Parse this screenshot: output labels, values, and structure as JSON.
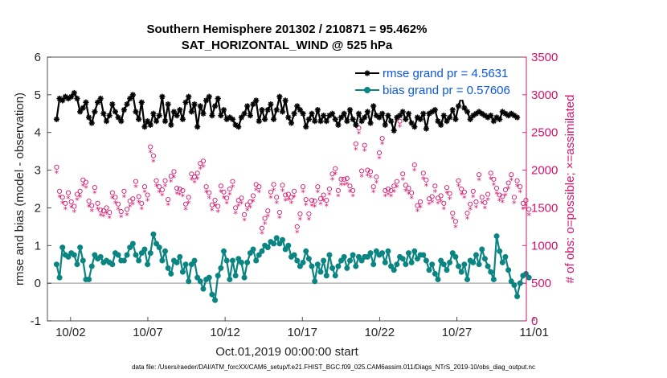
{
  "chart_data": {
    "type": "line",
    "title": "Southern Hemisphere 201302 / 210871 = 95.462%",
    "subtitle": "SAT_HORIZONTAL_WIND @ 525 hPa",
    "xlabel": "Oct.01,2019 00:00:00 start",
    "ylabel": "rmse and bias (model - observation)",
    "ylabel_right": "# of obs: o=possible; ×=assimilated",
    "footer": "data file: /Users/raeder/DAI/ATM_forcXX/CAM6_setup/f.e21.FHIST_BGC.f09_025.CAM6assim.011/Diags_NTrS_2019-10/obs_diag_output.nc",
    "xlim": [
      0.5,
      31.5
    ],
    "ylim": [
      -1,
      6
    ],
    "ylim_right": [
      0,
      3500
    ],
    "x_ticks": [
      2,
      7,
      12,
      17,
      22,
      27,
      32
    ],
    "x_tick_labels": [
      "10/02",
      "10/07",
      "10/12",
      "10/17",
      "10/22",
      "10/27",
      "11/01"
    ],
    "y_ticks": [
      "-1",
      "0",
      "1",
      "2",
      "3",
      "4",
      "5",
      "6"
    ],
    "y_right_ticks": [
      "0",
      "500",
      "1000",
      "1500",
      "2000",
      "2500",
      "3000",
      "3500"
    ],
    "grid": false,
    "legend_placement": "top-right",
    "colors": {
      "rmse": "#000000",
      "bias": "#0a8582",
      "obs": "#d6126b",
      "zero_line": "#b4b4b4",
      "legend_text": "#0b56e6"
    },
    "series": [
      {
        "name": "rmse grand pr = 4.5631",
        "axis": "left",
        "values": [
          4.35,
          4.9,
          4.85,
          4.95,
          4.9,
          4.95,
          5.05,
          4.9,
          4.55,
          4.65,
          4.8,
          4.4,
          4.25,
          4.55,
          4.8,
          4.9,
          4.5,
          4.3,
          4.45,
          4.75,
          4.55,
          4.4,
          4.3,
          4.6,
          4.75,
          4.9,
          5.0,
          4.55,
          4.35,
          4.8,
          4.15,
          4.3,
          4.2,
          4.5,
          4.3,
          4.45,
          4.95,
          4.3,
          4.75,
          4.2,
          4.55,
          4.45,
          4.6,
          4.35,
          4.8,
          4.95,
          4.55,
          4.75,
          4.15,
          4.7,
          4.5,
          4.85,
          4.95,
          4.45,
          4.7,
          4.9,
          4.45,
          4.6,
          4.35,
          4.4,
          4.35,
          4.2,
          4.15,
          4.4,
          4.5,
          4.7,
          4.45,
          4.75,
          4.85,
          4.3,
          4.6,
          4.35,
          4.6,
          4.75,
          4.35,
          4.6,
          4.95,
          4.55,
          4.85,
          4.4,
          4.25,
          4.5,
          4.7,
          4.6,
          4.5,
          4.15,
          4.35,
          4.5,
          4.3,
          4.6,
          4.3,
          4.45,
          4.3,
          4.45,
          4.5,
          4.35,
          4.2,
          4.4,
          4.5,
          4.3,
          4.6,
          4.35,
          4.2,
          4.5,
          4.3,
          4.4,
          4.55,
          4.25,
          4.7,
          4.45,
          4.4,
          4.5,
          4.2,
          4.45,
          4.3,
          4.05,
          4.4,
          4.45,
          4.55,
          4.35,
          4.5,
          4.25,
          4.15,
          4.4,
          4.35,
          4.5,
          4.1,
          4.5,
          4.55,
          4.6,
          4.3,
          4.2,
          4.45,
          4.3,
          4.4,
          4.6,
          4.35,
          4.7,
          4.95,
          4.65,
          4.55,
          4.35,
          4.45,
          4.5,
          4.55,
          4.5,
          4.45,
          4.4,
          4.45,
          4.3,
          4.4,
          4.35,
          4.55,
          4.5,
          4.45,
          4.5,
          4.45,
          4.4
        ]
      },
      {
        "name": "bias grand pr = 0.57606",
        "axis": "left",
        "values": [
          0.5,
          0.15,
          0.95,
          0.75,
          0.7,
          0.8,
          0.75,
          0.5,
          0.95,
          0.6,
          0.1,
          0.1,
          0.45,
          0.75,
          0.65,
          0.7,
          0.55,
          0.6,
          0.55,
          0.5,
          0.8,
          0.75,
          0.6,
          0.6,
          0.75,
          0.95,
          1.05,
          0.75,
          0.6,
          0.8,
          0.9,
          0.5,
          0.8,
          1.3,
          1.05,
          0.95,
          0.6,
          0.85,
          0.4,
          0.25,
          0.6,
          0.55,
          0.7,
          0.3,
          0.5,
          0.05,
          0.5,
          0.6,
          0.15,
          0.05,
          -0.15,
          0.1,
          0.15,
          -0.3,
          -0.45,
          0.2,
          0.4,
          0.85,
          0.6,
          0.1,
          0.6,
          0.2,
          0.65,
          0.55,
          0.15,
          0.55,
          0.8,
          0.9,
          0.6,
          0.75,
          0.85,
          1.0,
          0.95,
          1.1,
          1.05,
          1.2,
          1.05,
          1.15,
          0.9,
          1.0,
          0.7,
          0.75,
          0.6,
          0.45,
          0.55,
          0.85,
          0.65,
          0.45,
          0.05,
          0.5,
          0.3,
          0.6,
          0.2,
          0.75,
          0.4,
          0.2,
          0.45,
          0.6,
          0.7,
          0.4,
          0.6,
          0.75,
          0.45,
          0.7,
          0.6,
          0.7,
          0.7,
          0.8,
          0.5,
          0.85,
          0.75,
          0.8,
          0.55,
          0.85,
          0.45,
          0.35,
          0.5,
          0.7,
          0.65,
          0.5,
          0.8,
          0.55,
          0.85,
          0.65,
          0.75,
          0.75,
          0.6,
          0.35,
          0.5,
          0.25,
          0.1,
          0.6,
          0.5,
          0.35,
          0.55,
          0.8,
          0.7,
          0.45,
          0.3,
          0.5,
          0.1,
          0.6,
          0.55,
          0.75,
          0.5,
          0.9,
          0.65,
          0.45,
          0.3,
          0.1,
          1.25,
          0.85,
          0.55,
          0.7,
          0.35,
          0.05,
          -0.05,
          -0.35,
          0.0,
          0.2,
          0.25,
          0.15
        ]
      },
      {
        "name": "# of obs possible",
        "axis": "right",
        "values": [
          2040,
          1720,
          1640,
          1560,
          1700,
          1580,
          1520,
          1680,
          1720,
          1870,
          1840,
          1590,
          1530,
          1770,
          1560,
          1470,
          1460,
          1500,
          1440,
          1700,
          1640,
          1550,
          1450,
          1720,
          1480,
          1590,
          1620,
          1850,
          1650,
          1560,
          1780,
          1670,
          2310,
          2190,
          1860,
          1780,
          1740,
          1860,
          1610,
          1920,
          1980,
          1760,
          1750,
          1730,
          1550,
          1640,
          1950,
          1910,
          1960,
          2090,
          2120,
          1780,
          1700,
          1540,
          1600,
          1520,
          1790,
          1710,
          1630,
          1750,
          1850,
          1500,
          1600,
          1630,
          1410,
          1540,
          1580,
          1660,
          1810,
          1780,
          1230,
          1360,
          1460,
          1710,
          1810,
          1640,
          1440,
          1800,
          1670,
          1680,
          1640,
          1720,
          1250,
          1420,
          1780,
          1610,
          1420,
          1600,
          1590,
          1780,
          1620,
          1670,
          1600,
          1750,
          1950,
          2020,
          1730,
          1880,
          1880,
          1890,
          1790,
          1730,
          2350,
          2560,
          1990,
          2330,
          2000,
          1980,
          1780,
          1910,
          2230,
          2420,
          1730,
          1750,
          1730,
          1790,
          1850,
          2650,
          1950,
          1800,
          1760,
          1700,
          2070,
          1530,
          1580,
          1960,
          1870,
          1620,
          1650,
          1790,
          1630,
          1660,
          1560,
          1770,
          1690,
          1430,
          1320,
          1860,
          1750,
          1710,
          1430,
          1550,
          1720,
          1580,
          1940,
          1640,
          1570,
          1680,
          1960,
          1880,
          1760,
          1670,
          1650,
          1740,
          1830,
          1940,
          1640,
          1860,
          1780,
          1560,
          1600,
          1480
        ]
      },
      {
        "name": "# of obs assimilated",
        "axis": "right",
        "values": [
          1960,
          1640,
          1560,
          1480,
          1620,
          1500,
          1440,
          1600,
          1640,
          1790,
          1760,
          1510,
          1450,
          1690,
          1480,
          1390,
          1380,
          1420,
          1360,
          1620,
          1560,
          1470,
          1370,
          1640,
          1400,
          1510,
          1540,
          1770,
          1570,
          1480,
          1700,
          1590,
          2230,
          2110,
          1780,
          1700,
          1660,
          1780,
          1530,
          1840,
          1900,
          1680,
          1670,
          1650,
          1470,
          1560,
          1870,
          1830,
          1880,
          2010,
          2040,
          1700,
          1620,
          1460,
          1520,
          1440,
          1710,
          1630,
          1550,
          1670,
          1770,
          1420,
          1520,
          1550,
          1330,
          1460,
          1500,
          1580,
          1730,
          1700,
          1150,
          1280,
          1380,
          1630,
          1730,
          1560,
          1360,
          1720,
          1590,
          1600,
          1560,
          1640,
          1170,
          1340,
          1700,
          1530,
          1340,
          1520,
          1510,
          1700,
          1540,
          1590,
          1520,
          1670,
          1870,
          1940,
          1650,
          1800,
          1800,
          1810,
          1710,
          1650,
          2270,
          2480,
          1910,
          2250,
          1920,
          1900,
          1700,
          1830,
          2150,
          2340,
          1650,
          1670,
          1650,
          1710,
          1770,
          2570,
          1870,
          1720,
          1680,
          1620,
          1990,
          1450,
          1500,
          1880,
          1790,
          1540,
          1570,
          1710,
          1550,
          1580,
          1480,
          1690,
          1610,
          1350,
          1240,
          1780,
          1670,
          1630,
          1350,
          1470,
          1640,
          1500,
          1860,
          1560,
          1490,
          1600,
          1880,
          1800,
          1680,
          1590,
          1570,
          1660,
          1750,
          1860,
          1560,
          1780,
          1700,
          1480,
          1520,
          1400
        ]
      }
    ]
  }
}
